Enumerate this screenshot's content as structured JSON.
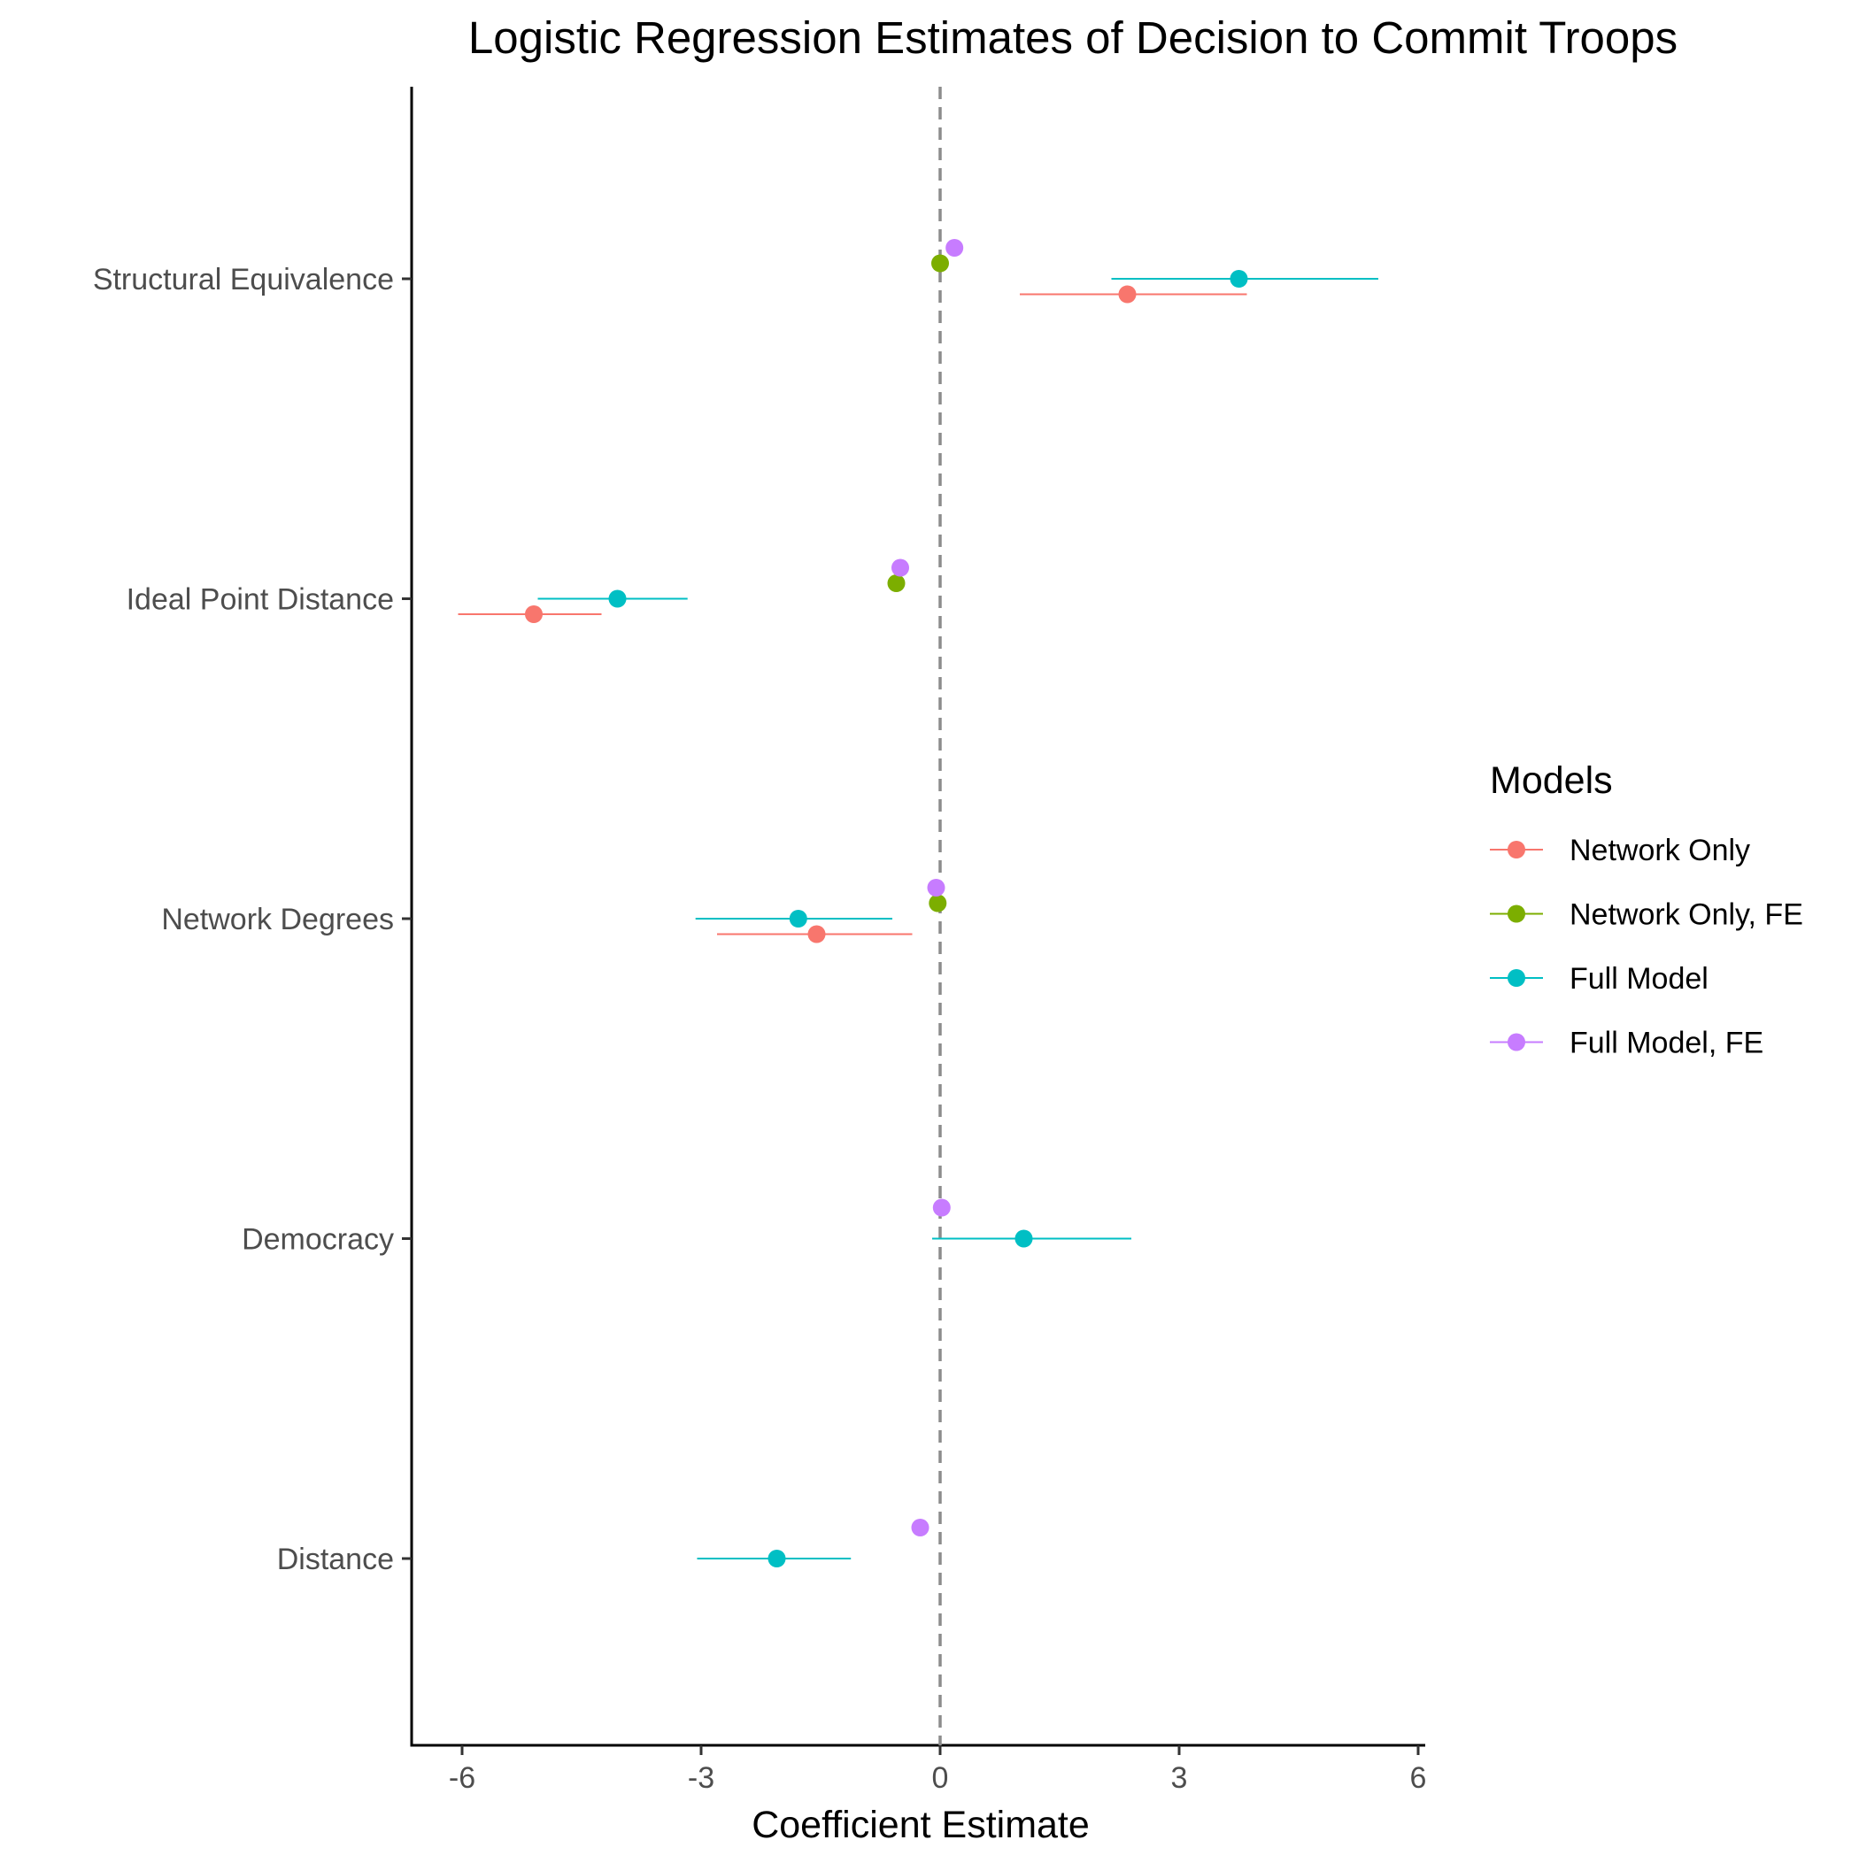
{
  "chart_data": {
    "type": "scatter",
    "title": "Logistic Regression Estimates of Decision to Commit Troops",
    "xlabel": "Coefficient Estimate",
    "ylabel": "",
    "xlim": [
      -6.6,
      6.1
    ],
    "xticks": [
      -6,
      -3,
      0,
      3,
      6
    ],
    "xtick_labels": [
      "-6",
      "-3",
      "0",
      "3",
      "6"
    ],
    "reference_line": {
      "x": 0,
      "style": "dashed",
      "color": "#8c8c8c"
    },
    "grid": false,
    "categories": [
      "Structural Equivalence",
      "Ideal Point Distance",
      "Network Degrees",
      "Democracy",
      "Distance"
    ],
    "legend": {
      "title": "Models",
      "position": "right"
    },
    "series": [
      {
        "name": "Network Only",
        "color": "#F8766D",
        "points": [
          {
            "category": "Structural Equivalence",
            "estimate": 2.35,
            "lower": 1.0,
            "upper": 3.85
          },
          {
            "category": "Ideal Point Distance",
            "estimate": -5.1,
            "lower": -6.05,
            "upper": -4.25
          },
          {
            "category": "Network Degrees",
            "estimate": -1.55,
            "lower": -2.8,
            "upper": -0.35
          }
        ]
      },
      {
        "name": "Network Only, FE",
        "color": "#7CAE00",
        "points": [
          {
            "category": "Structural Equivalence",
            "estimate": 0.0,
            "lower": null,
            "upper": null
          },
          {
            "category": "Ideal Point Distance",
            "estimate": -0.55,
            "lower": null,
            "upper": null
          },
          {
            "category": "Network Degrees",
            "estimate": -0.03,
            "lower": null,
            "upper": null
          }
        ]
      },
      {
        "name": "Full Model",
        "color": "#00BFC4",
        "points": [
          {
            "category": "Structural Equivalence",
            "estimate": 3.75,
            "lower": 2.15,
            "upper": 5.5
          },
          {
            "category": "Ideal Point Distance",
            "estimate": -4.05,
            "lower": -5.05,
            "upper": -3.17
          },
          {
            "category": "Network Degrees",
            "estimate": -1.78,
            "lower": -3.07,
            "upper": -0.6
          },
          {
            "category": "Democracy",
            "estimate": 1.05,
            "lower": -0.1,
            "upper": 2.4
          },
          {
            "category": "Distance",
            "estimate": -2.05,
            "lower": -3.05,
            "upper": -1.12
          }
        ]
      },
      {
        "name": "Full Model, FE",
        "color": "#C77CFF",
        "points": [
          {
            "category": "Structural Equivalence",
            "estimate": 0.18,
            "lower": null,
            "upper": null
          },
          {
            "category": "Ideal Point Distance",
            "estimate": -0.5,
            "lower": null,
            "upper": null
          },
          {
            "category": "Network Degrees",
            "estimate": -0.05,
            "lower": null,
            "upper": null
          },
          {
            "category": "Democracy",
            "estimate": 0.02,
            "lower": null,
            "upper": null
          },
          {
            "category": "Distance",
            "estimate": -0.25,
            "lower": null,
            "upper": null
          }
        ]
      }
    ]
  }
}
